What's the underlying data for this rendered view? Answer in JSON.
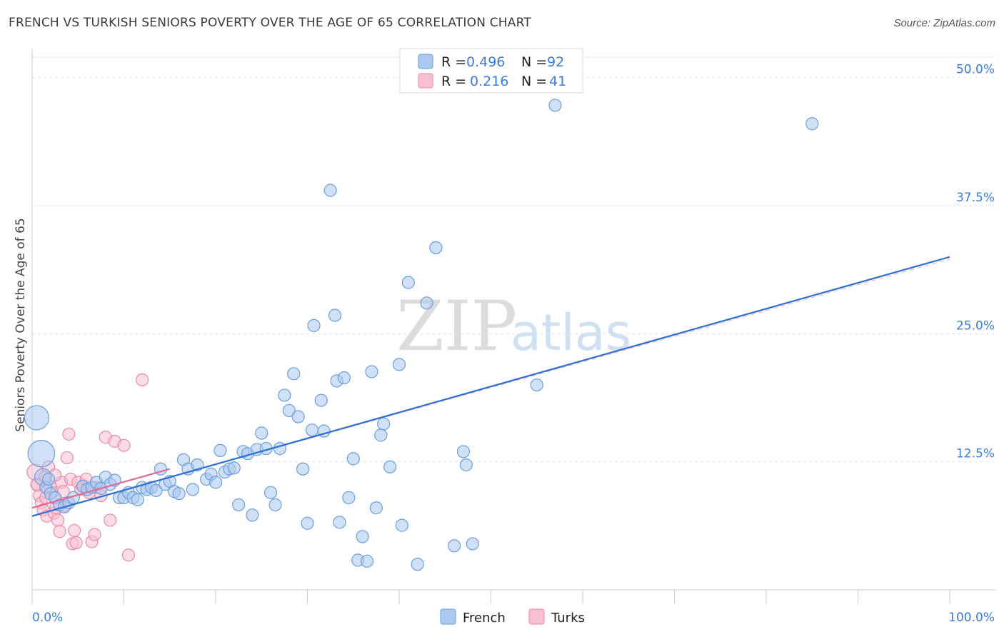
{
  "title": "FRENCH VS TURKISH SENIORS POVERTY OVER THE AGE OF 65 CORRELATION CHART",
  "source": "Source: ZipAtlas.com",
  "watermark": {
    "zip": "ZIP",
    "atlas": "atlas"
  },
  "legend_top": {
    "r_label": "R =",
    "n_label": "N =",
    "rows": [
      {
        "r": "0.496",
        "n": "92",
        "color": "#a9c9f0",
        "stroke": "#6b9edb"
      },
      {
        "r": "0.216",
        "n": "41",
        "color": "#f8bfd0",
        "stroke": "#e88aa8"
      }
    ]
  },
  "legend_bottom": [
    {
      "label": "French",
      "color": "#a9c9f0",
      "stroke": "#6b9edb"
    },
    {
      "label": "Turks",
      "color": "#f8bfd0",
      "stroke": "#e88aa8"
    }
  ],
  "chart_data": {
    "type": "scatter",
    "title": "FRENCH VS TURKISH SENIORS POVERTY OVER THE AGE OF 65 CORRELATION CHART",
    "xlabel": "",
    "ylabel": "Seniors Poverty Over the Age of 65",
    "xlim": [
      0,
      100
    ],
    "ylim": [
      0,
      52
    ],
    "x_tick_labels": {
      "left": "0.0%",
      "right": "100.0%"
    },
    "y_ticks": [
      12.5,
      25.0,
      37.5,
      50.0
    ],
    "y_tick_labels": [
      "12.5%",
      "25.0%",
      "37.5%",
      "50.0%"
    ],
    "grid": true,
    "legend_position": "top-center",
    "series": [
      {
        "name": "French",
        "color": "#a9c9f0",
        "stroke": "#6b9edb",
        "trend": {
          "x": [
            0,
            100
          ],
          "y": [
            7.2,
            32.5
          ],
          "color": "#2e6fd0"
        },
        "points": [
          [
            0.5,
            16.8,
            2
          ],
          [
            1,
            13.3,
            2.2
          ],
          [
            1.2,
            11.0,
            1.4
          ],
          [
            1.5,
            10.0,
            1
          ],
          [
            2,
            9.4,
            1
          ],
          [
            2.5,
            9.0,
            1
          ],
          [
            3,
            8.3,
            1
          ],
          [
            3.5,
            8.1,
            1
          ],
          [
            4,
            8.5,
            1
          ],
          [
            4.5,
            9.0,
            1
          ],
          [
            5.5,
            10.1,
            1
          ],
          [
            6,
            9.8,
            1
          ],
          [
            6.5,
            10.0,
            1
          ],
          [
            7,
            10.5,
            1
          ],
          [
            7.5,
            9.9,
            1
          ],
          [
            8,
            11.0,
            1
          ],
          [
            8.5,
            10.3,
            1
          ],
          [
            9,
            10.7,
            1
          ],
          [
            9.5,
            9.0,
            1
          ],
          [
            10,
            9.0,
            1
          ],
          [
            10.5,
            9.5,
            1
          ],
          [
            11,
            9.0,
            1
          ],
          [
            11.5,
            8.8,
            1
          ],
          [
            12,
            10.0,
            1
          ],
          [
            12.5,
            9.8,
            1
          ],
          [
            13,
            10.0,
            1
          ],
          [
            13.5,
            9.7,
            1
          ],
          [
            14,
            11.8,
            1
          ],
          [
            14.5,
            10.3,
            1
          ],
          [
            15,
            10.6,
            1
          ],
          [
            15.5,
            9.6,
            1
          ],
          [
            16,
            9.4,
            1
          ],
          [
            16.5,
            12.7,
            1
          ],
          [
            17,
            11.8,
            1
          ],
          [
            17.5,
            9.8,
            1
          ],
          [
            18,
            12.2,
            1
          ],
          [
            19,
            10.8,
            1
          ],
          [
            19.5,
            11.3,
            1
          ],
          [
            20,
            10.5,
            1
          ],
          [
            20.5,
            13.6,
            1
          ],
          [
            21,
            11.5,
            1
          ],
          [
            21.5,
            11.8,
            1
          ],
          [
            22,
            11.9,
            1
          ],
          [
            22.5,
            8.3,
            1
          ],
          [
            23,
            13.5,
            1
          ],
          [
            23.5,
            13.3,
            1
          ],
          [
            24,
            7.3,
            1
          ],
          [
            24.5,
            13.7,
            1
          ],
          [
            25,
            15.3,
            1
          ],
          [
            25.5,
            13.8,
            1
          ],
          [
            26,
            9.5,
            1
          ],
          [
            26.5,
            8.3,
            1
          ],
          [
            27,
            13.8,
            1
          ],
          [
            27.5,
            19.0,
            1
          ],
          [
            28,
            17.5,
            1
          ],
          [
            28.5,
            21.1,
            1
          ],
          [
            29,
            16.9,
            1
          ],
          [
            29.5,
            11.8,
            1
          ],
          [
            30,
            6.5,
            1
          ],
          [
            30.5,
            15.6,
            1
          ],
          [
            30.7,
            25.8,
            1
          ],
          [
            31.5,
            18.5,
            1
          ],
          [
            31.8,
            15.5,
            1
          ],
          [
            32.5,
            39.0,
            1
          ],
          [
            33,
            26.8,
            1
          ],
          [
            33.2,
            20.4,
            1
          ],
          [
            33.5,
            6.6,
            1
          ],
          [
            34,
            20.7,
            1
          ],
          [
            34.5,
            9.0,
            1
          ],
          [
            35,
            12.8,
            1
          ],
          [
            35.5,
            2.9,
            1
          ],
          [
            36,
            5.2,
            1
          ],
          [
            36.5,
            2.8,
            1
          ],
          [
            37,
            21.3,
            1
          ],
          [
            37.5,
            8.0,
            1
          ],
          [
            38,
            15.1,
            1
          ],
          [
            38.3,
            16.2,
            1
          ],
          [
            39,
            12.0,
            1
          ],
          [
            40,
            22.0,
            1
          ],
          [
            40.3,
            6.3,
            1
          ],
          [
            41,
            30.0,
            1
          ],
          [
            42,
            2.5,
            1
          ],
          [
            43,
            28.0,
            1
          ],
          [
            44,
            33.4,
            1
          ],
          [
            46,
            4.3,
            1
          ],
          [
            47,
            13.5,
            1
          ],
          [
            47.3,
            12.2,
            1
          ],
          [
            48,
            4.5,
            1
          ],
          [
            55,
            20.0,
            1
          ],
          [
            57,
            47.3,
            1
          ],
          [
            85,
            45.5,
            1
          ],
          [
            1.8,
            10.8,
            1
          ]
        ]
      },
      {
        "name": "Turks",
        "color": "#f8bfd0",
        "stroke": "#e88aa8",
        "trend": {
          "x": [
            0,
            15
          ],
          "y": [
            8.0,
            11.8
          ],
          "color": "#e06a92"
        },
        "points": [
          [
            0.3,
            11.5,
            1.3
          ],
          [
            0.6,
            10.2,
            1
          ],
          [
            0.8,
            9.2,
            1
          ],
          [
            1,
            8.5,
            1
          ],
          [
            1.2,
            7.8,
            1
          ],
          [
            1.4,
            11.0,
            1
          ],
          [
            1.6,
            7.2,
            1
          ],
          [
            1.8,
            12.0,
            1
          ],
          [
            2,
            10.0,
            1
          ],
          [
            2.2,
            9.5,
            1
          ],
          [
            2.4,
            7.5,
            1
          ],
          [
            2.6,
            8.0,
            1
          ],
          [
            2.8,
            6.8,
            1
          ],
          [
            3,
            5.7,
            1
          ],
          [
            3.2,
            10.5,
            1
          ],
          [
            3.4,
            9.6,
            1
          ],
          [
            3.6,
            8.2,
            1
          ],
          [
            3.8,
            12.9,
            1
          ],
          [
            4,
            15.2,
            1
          ],
          [
            4.2,
            10.8,
            1
          ],
          [
            4.4,
            4.5,
            1
          ],
          [
            4.6,
            5.8,
            1
          ],
          [
            4.8,
            4.6,
            1
          ],
          [
            5,
            10.5,
            1
          ],
          [
            5.3,
            9.8,
            1
          ],
          [
            5.6,
            10.2,
            1
          ],
          [
            5.9,
            10.8,
            1
          ],
          [
            6.2,
            9.5,
            1
          ],
          [
            6.5,
            4.7,
            1
          ],
          [
            6.8,
            5.4,
            1
          ],
          [
            7,
            10.0,
            1
          ],
          [
            7.5,
            9.2,
            1
          ],
          [
            8,
            14.9,
            1
          ],
          [
            8.5,
            6.8,
            1
          ],
          [
            9,
            14.5,
            1
          ],
          [
            10,
            14.1,
            1
          ],
          [
            10.5,
            3.4,
            1
          ],
          [
            12,
            20.5,
            1
          ],
          [
            0.5,
            10.3,
            1
          ],
          [
            1.5,
            9.0,
            1
          ],
          [
            2.5,
            11.2,
            1
          ]
        ]
      }
    ]
  }
}
